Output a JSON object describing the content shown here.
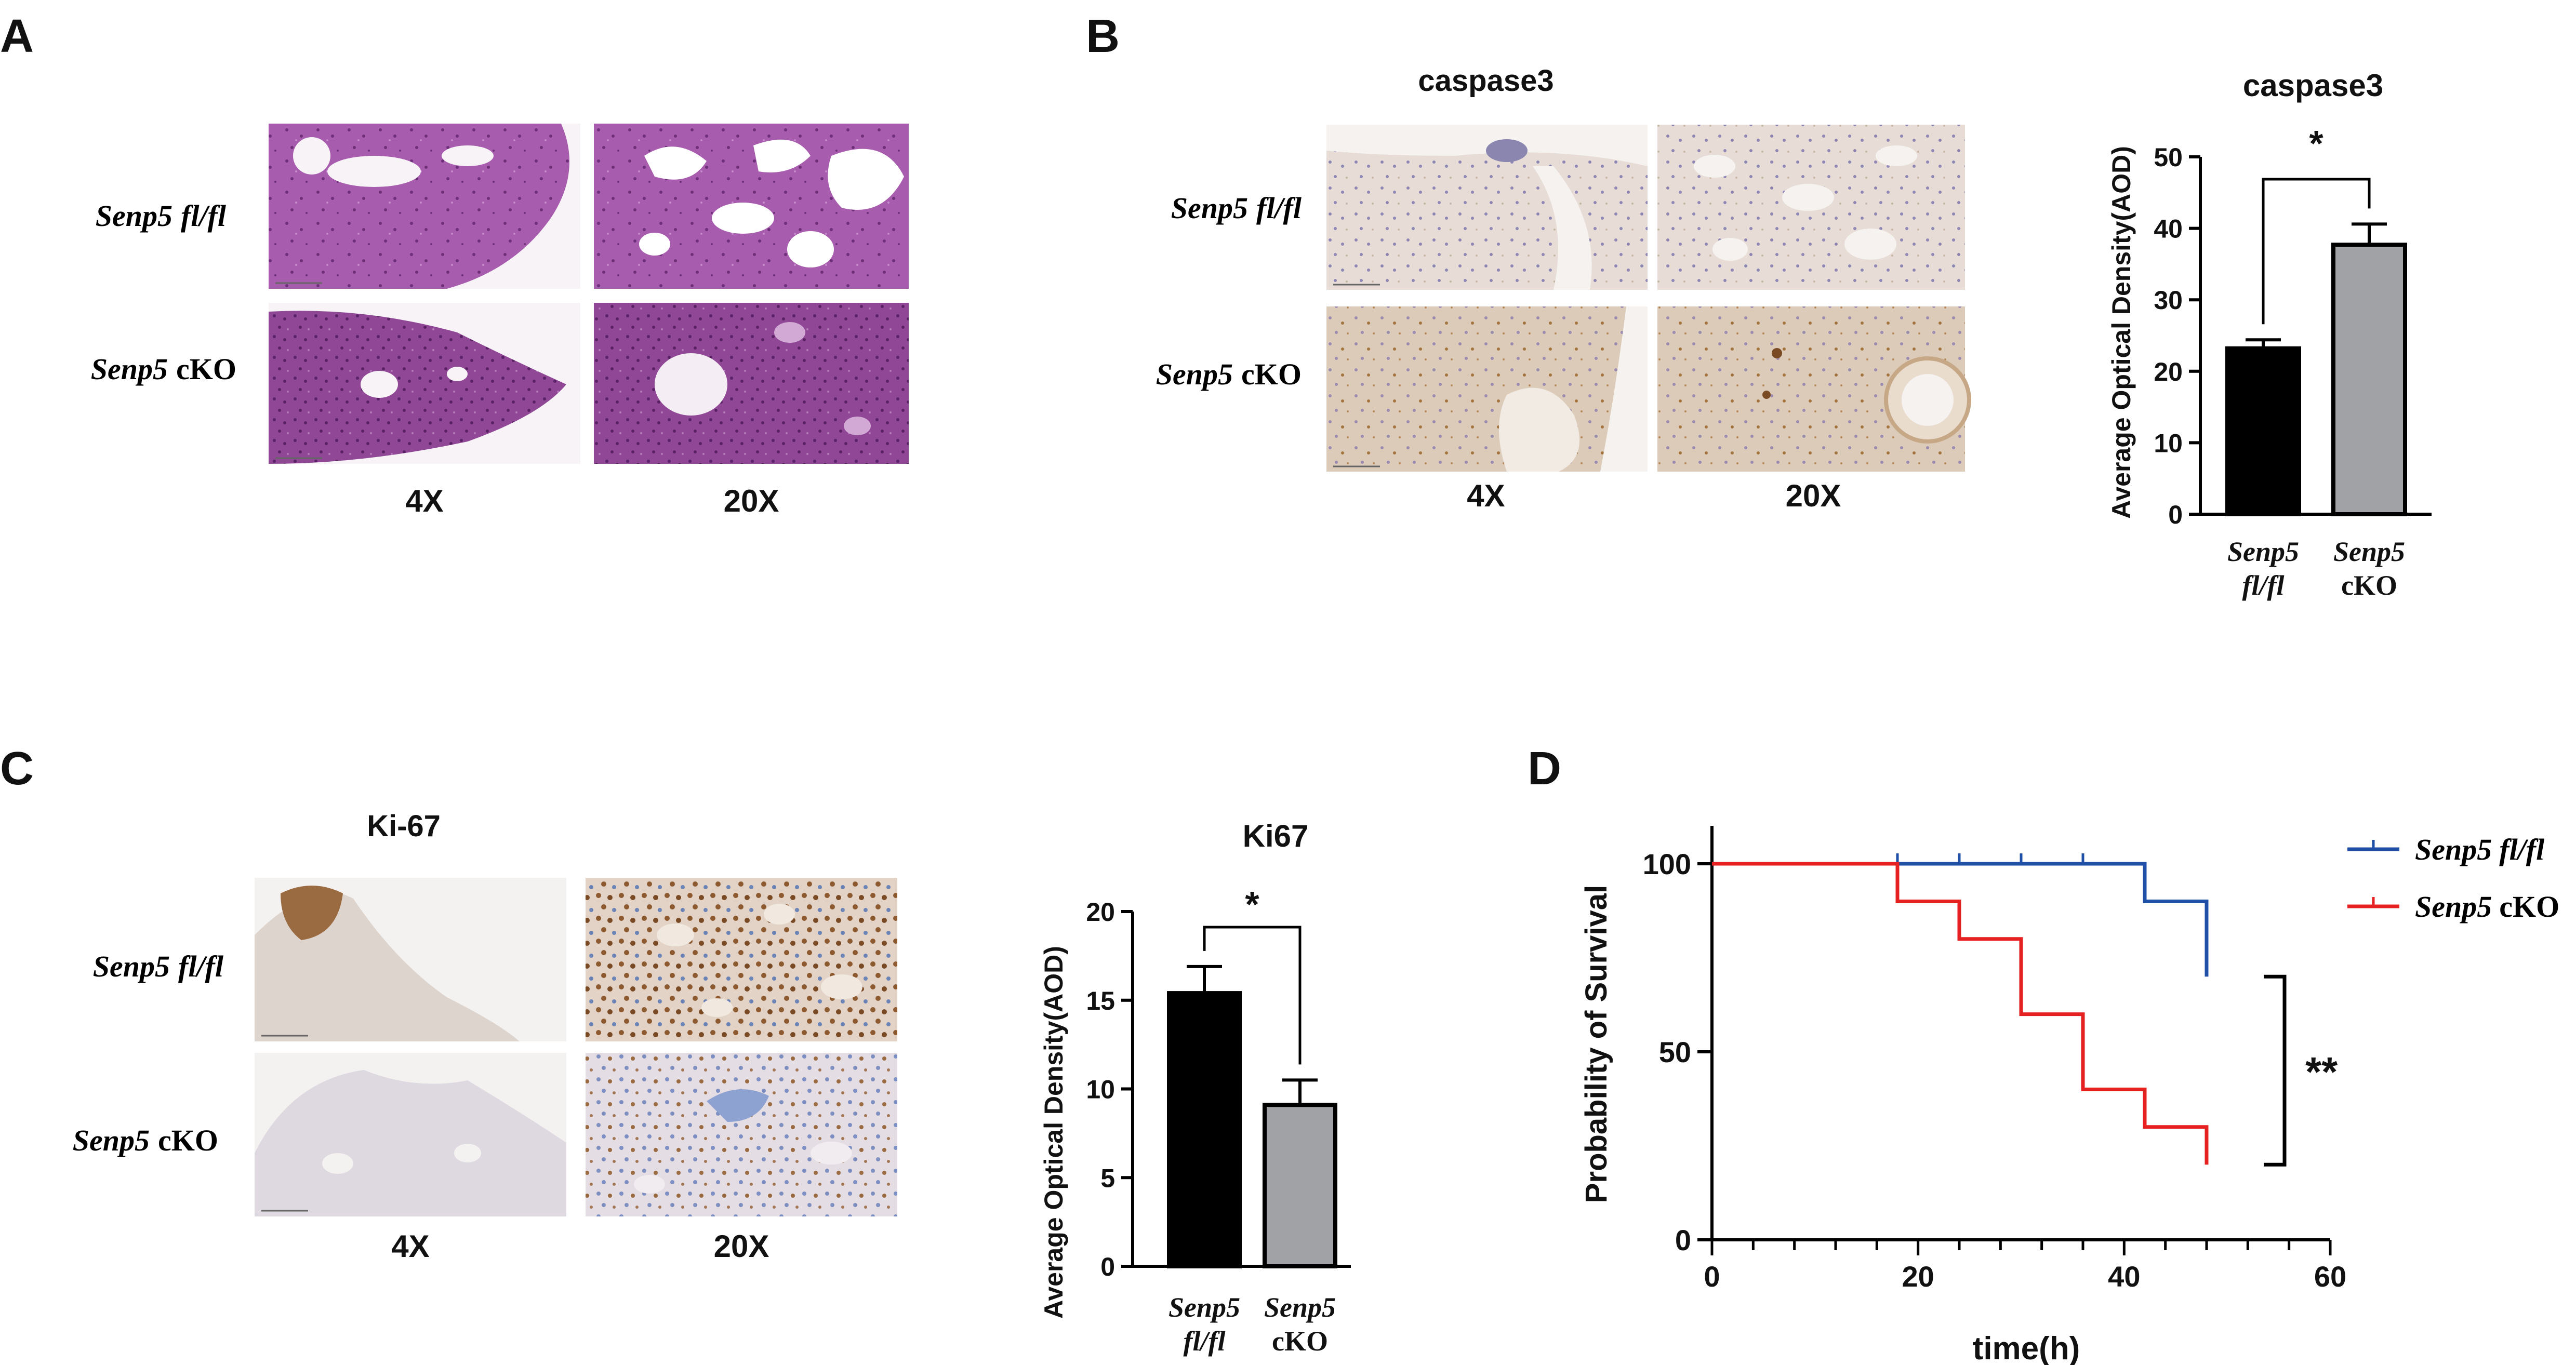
{
  "panel_letters": {
    "a": "A",
    "b": "B",
    "c": "C",
    "d": "D"
  },
  "row_labels": {
    "gene": "Senp5",
    "control": "fl/fl",
    "ko": "cKO"
  },
  "magnifications": {
    "low": "4X",
    "high": "20X"
  },
  "panel_b": {
    "stain": "caspase3"
  },
  "panel_c": {
    "stain": "Ki-67"
  },
  "colors": {
    "he_tissue": "#b065b6",
    "he_dense": "#8f4796",
    "ihc_bg": "#f3ede6",
    "ihc_tissue": "#d9cfc4",
    "brown_stain": "#8d5a30",
    "bar_control": "#000000",
    "bar_ko": "#a0a2a6",
    "line_control": "#1f4fa7",
    "line_ko": "#e62121"
  },
  "chart_data": [
    {
      "type": "bar",
      "title": "caspase3",
      "ylabel": "Average Optical Density(AOD)",
      "categories": [
        [
          "Senp5",
          "fl/fl"
        ],
        [
          "Senp5",
          "cKO"
        ]
      ],
      "values": [
        23.2,
        37.7
      ],
      "errors": [
        1.2,
        2.9
      ],
      "ylim": [
        0,
        50
      ],
      "yticks": [
        0,
        10,
        20,
        30,
        40,
        50
      ],
      "significance": "*"
    },
    {
      "type": "bar",
      "title": "Ki67",
      "ylabel": "Average Optical Density(AOD)",
      "categories": [
        [
          "Senp5",
          "fl/fl"
        ],
        [
          "Senp5",
          "cKO"
        ]
      ],
      "values": [
        15.4,
        9.1
      ],
      "errors": [
        1.5,
        1.4
      ],
      "ylim": [
        0,
        20
      ],
      "yticks": [
        0,
        5,
        10,
        15,
        20
      ],
      "significance": "*"
    },
    {
      "type": "line",
      "subtype": "kaplan-meier",
      "xlabel": "time(h)",
      "ylabel": "Probability of Survival",
      "xlim": [
        0,
        60
      ],
      "ylim": [
        0,
        100
      ],
      "xticks": [
        0,
        20,
        40,
        60
      ],
      "yticks": [
        0,
        50,
        100
      ],
      "significance": "**",
      "legend_position": "top-right",
      "series": [
        {
          "name": "Senp5 fl/fl",
          "legend": {
            "gene": "Senp5",
            "genotype": "fl/fl"
          },
          "x": [
            0,
            42,
            48
          ],
          "y": [
            100,
            90,
            70
          ],
          "censored": [
            18,
            24,
            30,
            36
          ]
        },
        {
          "name": "Senp5 cKO",
          "legend": {
            "gene": "Senp5",
            "genotype": "cKO"
          },
          "x": [
            0,
            18,
            24,
            30,
            36,
            42,
            48
          ],
          "y": [
            100,
            90,
            80,
            60,
            40,
            30,
            20
          ],
          "censored": []
        }
      ]
    }
  ]
}
